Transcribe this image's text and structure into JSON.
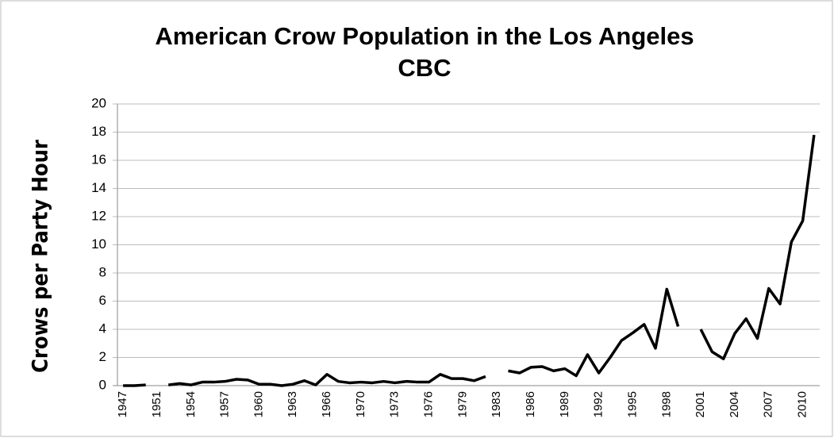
{
  "chart_data": {
    "type": "line",
    "title": "American Crow Population in the Los Angeles CBC",
    "y_label": "Crows per Party Hour",
    "categories": [
      "1947",
      null,
      null,
      "1951",
      null,
      null,
      "1954",
      null,
      null,
      "1957",
      null,
      null,
      "1960",
      null,
      null,
      "1963",
      null,
      null,
      "1966",
      null,
      null,
      "1970",
      null,
      null,
      "1973",
      null,
      null,
      "1976",
      null,
      null,
      "1979",
      null,
      null,
      "1983",
      null,
      null,
      "1986",
      null,
      null,
      "1989",
      null,
      null,
      "1992",
      null,
      null,
      "1995",
      null,
      null,
      "1998",
      null,
      null,
      "2001",
      null,
      null,
      "2004",
      null,
      null,
      "2007",
      null,
      null,
      "2010",
      null
    ],
    "series": [
      {
        "name": "Crows per Party Hour",
        "color": "#000000",
        "values": [
          0,
          0,
          0.05,
          null,
          0.05,
          0.15,
          0.05,
          0.25,
          0.25,
          0.3,
          0.45,
          0.4,
          0.1,
          0.1,
          0,
          0.1,
          0.35,
          0.05,
          0.8,
          0.3,
          0.2,
          0.25,
          0.2,
          0.3,
          0.2,
          0.3,
          0.25,
          0.25,
          0.8,
          0.5,
          0.5,
          0.35,
          0.65,
          null,
          1.05,
          0.9,
          1.3,
          1.35,
          1.05,
          1.2,
          0.7,
          2.2,
          0.9,
          2.0,
          3.2,
          3.75,
          4.35,
          2.65,
          6.85,
          4.2,
          null,
          4.0,
          2.4,
          1.9,
          3.7,
          4.75,
          3.35,
          6.9,
          5.8,
          10.2,
          11.7,
          17.8
        ]
      }
    ],
    "ylim": [
      0,
      20
    ],
    "yticks": [
      0,
      2,
      4,
      6,
      8,
      10,
      12,
      14,
      16,
      18,
      20
    ],
    "grid": true
  }
}
